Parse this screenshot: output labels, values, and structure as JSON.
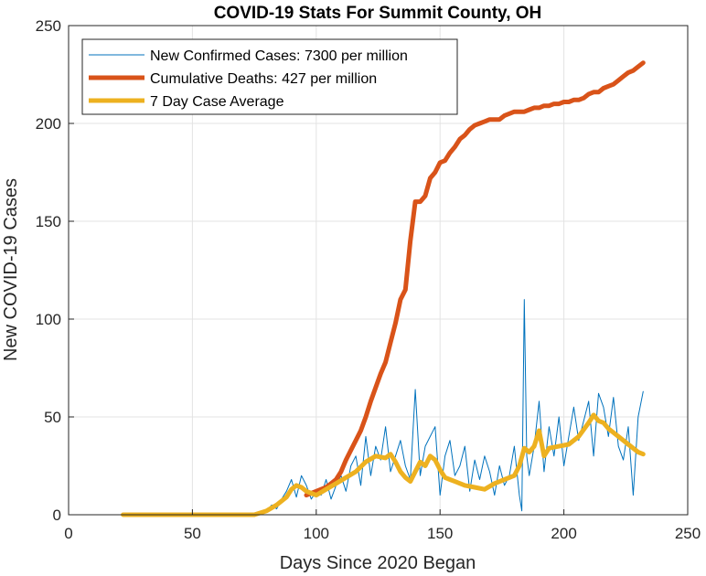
{
  "chart_data": {
    "type": "line",
    "title": "COVID-19 Stats For Summit County, OH",
    "xlabel": "Days Since 2020 Began",
    "ylabel": "New COVID-19 Cases",
    "xlim": [
      0,
      250
    ],
    "ylim": [
      0,
      250
    ],
    "xticks": [
      "0",
      "50",
      "100",
      "150",
      "200",
      "250"
    ],
    "yticks": [
      "0",
      "50",
      "100",
      "150",
      "200",
      "250"
    ],
    "grid": true,
    "legend_position": "top-left",
    "series": [
      {
        "name": "New Confirmed Cases: 7300 per million",
        "color": "#0072BD",
        "line_width": "thin",
        "x": [
          22,
          75,
          80,
          82,
          84,
          86,
          88,
          90,
          92,
          94,
          96,
          98,
          100,
          102,
          104,
          106,
          108,
          110,
          112,
          114,
          116,
          118,
          120,
          122,
          124,
          126,
          128,
          130,
          132,
          134,
          136,
          138,
          140,
          142,
          144,
          146,
          148,
          150,
          152,
          154,
          156,
          158,
          160,
          162,
          164,
          166,
          168,
          170,
          172,
          174,
          176,
          178,
          180,
          182,
          183,
          184,
          185,
          186,
          188,
          190,
          192,
          194,
          196,
          198,
          200,
          202,
          204,
          206,
          208,
          210,
          212,
          214,
          216,
          218,
          220,
          222,
          224,
          226,
          228,
          230,
          232
        ],
        "y": [
          0,
          0,
          2,
          5,
          3,
          8,
          12,
          18,
          9,
          20,
          15,
          8,
          12,
          10,
          18,
          8,
          15,
          20,
          12,
          25,
          30,
          15,
          40,
          20,
          35,
          28,
          45,
          22,
          30,
          38,
          25,
          18,
          64,
          20,
          35,
          40,
          45,
          10,
          30,
          38,
          20,
          25,
          35,
          12,
          28,
          18,
          30,
          22,
          10,
          25,
          15,
          20,
          35,
          10,
          2,
          110,
          30,
          20,
          35,
          58,
          22,
          45,
          30,
          50,
          25,
          40,
          55,
          38,
          48,
          58,
          30,
          62,
          55,
          40,
          60,
          35,
          28,
          45,
          10,
          50,
          63
        ]
      },
      {
        "name": "Cumulative Deaths: 427 per million",
        "color": "#D95319",
        "line_width": "thick",
        "x": [
          96,
          100,
          104,
          106,
          108,
          110,
          112,
          114,
          116,
          118,
          120,
          122,
          124,
          126,
          128,
          130,
          132,
          134,
          136,
          138,
          140,
          142,
          144,
          146,
          148,
          150,
          152,
          154,
          156,
          158,
          160,
          162,
          164,
          166,
          168,
          170,
          172,
          174,
          176,
          178,
          180,
          182,
          184,
          186,
          188,
          190,
          192,
          194,
          196,
          198,
          200,
          202,
          204,
          206,
          208,
          210,
          212,
          214,
          216,
          218,
          220,
          222,
          224,
          226,
          228,
          230,
          232
        ],
        "y": [
          10,
          12,
          14,
          16,
          18,
          22,
          28,
          33,
          38,
          43,
          50,
          58,
          65,
          72,
          78,
          88,
          98,
          110,
          115,
          140,
          160,
          160,
          163,
          172,
          175,
          180,
          181,
          185,
          188,
          192,
          194,
          197,
          199,
          200,
          201,
          202,
          202,
          202,
          204,
          205,
          206,
          206,
          206,
          207,
          208,
          208,
          209,
          209,
          210,
          210,
          211,
          211,
          212,
          212,
          213,
          215,
          216,
          216,
          218,
          219,
          220,
          222,
          224,
          226,
          227,
          229,
          231
        ]
      },
      {
        "name": "7 Day Case Average",
        "color": "#EDB120",
        "line_width": "thick",
        "x": [
          22,
          75,
          80,
          84,
          88,
          90,
          92,
          94,
          96,
          98,
          100,
          104,
          108,
          112,
          116,
          120,
          124,
          128,
          130,
          132,
          134,
          136,
          138,
          140,
          142,
          144,
          146,
          148,
          150,
          152,
          154,
          156,
          160,
          164,
          168,
          172,
          176,
          180,
          182,
          184,
          186,
          188,
          190,
          192,
          194,
          198,
          202,
          206,
          210,
          212,
          214,
          216,
          218,
          222,
          226,
          230,
          232
        ],
        "y": [
          0,
          0,
          2,
          5,
          9,
          13,
          15,
          14,
          12,
          11,
          10,
          13,
          16,
          19,
          22,
          27,
          30,
          29,
          31,
          27,
          22,
          19,
          17,
          22,
          27,
          25,
          30,
          28,
          23,
          19,
          18,
          17,
          15,
          14,
          13,
          16,
          18,
          20,
          25,
          34,
          32,
          35,
          43,
          30,
          34,
          35,
          36,
          40,
          47,
          51,
          48,
          47,
          44,
          40,
          36,
          32,
          31
        ]
      }
    ]
  }
}
